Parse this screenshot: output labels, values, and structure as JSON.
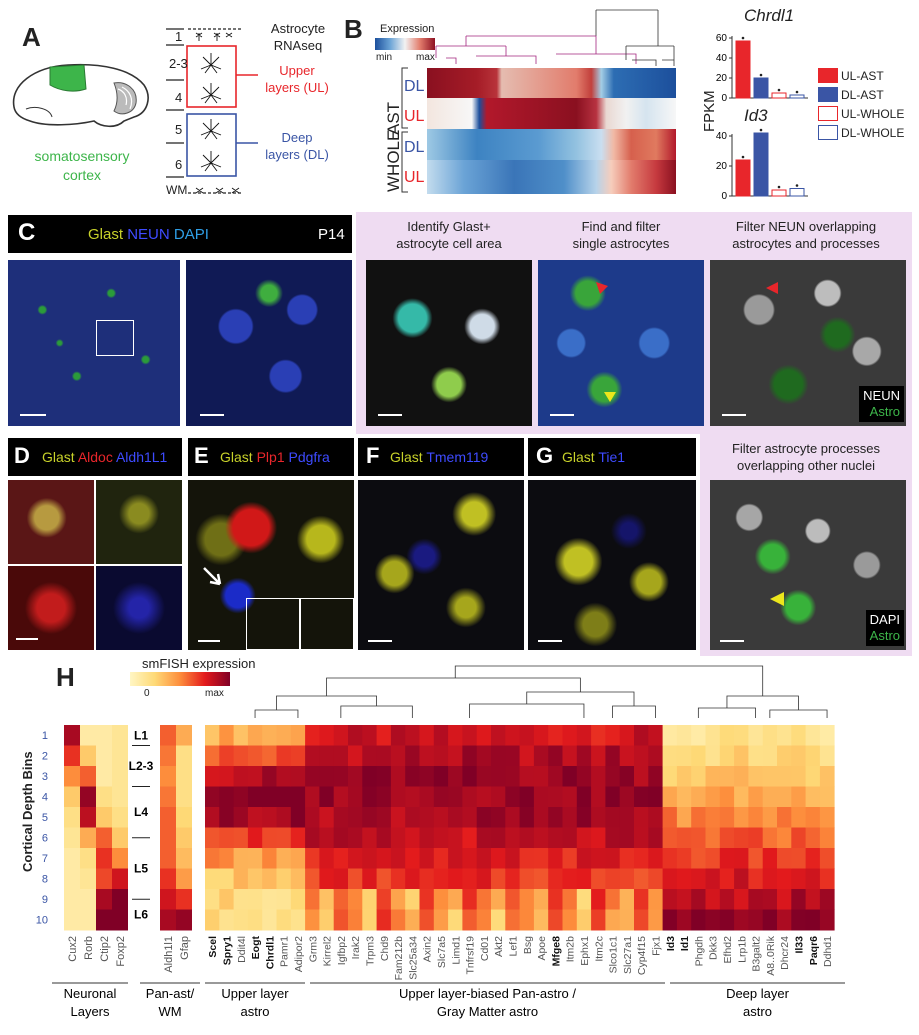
{
  "panelA": {
    "label": "A",
    "title_line1": "Astrocyte",
    "title_line2": "RNAseq",
    "region_line1": "somatosensory",
    "region_line2": "cortex",
    "layers": [
      "1",
      "2-3",
      "4",
      "5",
      "6",
      "WM"
    ],
    "upper_line1": "Upper",
    "upper_line2": "layers (UL)",
    "deep_line1": "Deep",
    "deep_line2": "layers (DL)"
  },
  "panelB": {
    "label": "B",
    "legend_title": "Expression",
    "legend_min": "min",
    "legend_max": "max",
    "group_ast": "AST",
    "group_whole": "WHOLE",
    "row_labels": [
      "DL",
      "UL",
      "DL",
      "UL"
    ],
    "yaxis": "FPKM",
    "legend_items": [
      "UL-AST",
      "DL-AST",
      "UL-WHOLE",
      "DL-WHOLE"
    ],
    "colors": {
      "ul": "#e8262b",
      "dl": "#3a55a5"
    }
  },
  "chart_data": [
    {
      "type": "bar",
      "title": "Chrdl1",
      "categories": [
        "UL-AST",
        "DL-AST",
        "UL-WHOLE",
        "DL-WHOLE"
      ],
      "values": [
        57,
        20,
        5,
        3
      ],
      "ylim": [
        0,
        60
      ],
      "yticks": [
        0,
        20,
        40,
        60
      ]
    },
    {
      "type": "bar",
      "title": "Id3",
      "categories": [
        "UL-AST",
        "DL-AST",
        "UL-WHOLE",
        "DL-WHOLE"
      ],
      "values": [
        24,
        42,
        4,
        5
      ],
      "ylim": [
        0,
        40
      ],
      "yticks": [
        0,
        20,
        40
      ]
    },
    {
      "type": "heatmap",
      "title": "smFISH expression",
      "legend_min": "0",
      "legend_max": "max",
      "ylabel": "Cortical Depth Bins",
      "rows": [
        "1",
        "2",
        "3",
        "4",
        "5",
        "6",
        "7",
        "8",
        "9",
        "10"
      ],
      "layer_labels": [
        "L1",
        "L2-3",
        "L4",
        "L5",
        "L6"
      ],
      "neuronal_genes": [
        "Cux2",
        "Rorb",
        "Ctip2",
        "Foxp2"
      ],
      "panast_genes": [
        "Aldh1l1",
        "Gfap"
      ],
      "genes": [
        "Scel",
        "Spry1",
        "Ddit4l",
        "Eogt",
        "Chrdl1",
        "Pamr1",
        "Adipor2",
        "Grm3",
        "Kirrel2",
        "Igfbp2",
        "Irak2",
        "Trpm3",
        "Chd9",
        "Fam212b",
        "Slc25a34",
        "Axin2",
        "Slc7a5",
        "Limd1",
        "Tnfrsf19",
        "Cd01",
        "Akt2",
        "Lef1",
        "Bsg",
        "Apoe",
        "Mfge8",
        "Itm2b",
        "Ephx1",
        "Itm2c",
        "Slco1c1",
        "Slc27a1",
        "Cyp4f15",
        "Fjx1",
        "Id3",
        "Id1",
        "Phgdh",
        "Dkk3",
        "Efhd2",
        "Lrp1b",
        "B3galt2",
        "A8..0Rik",
        "Dhcr24",
        "Il33",
        "Paqr6",
        "Ddhd1"
      ],
      "bold_genes": [
        "Scel",
        "Spry1",
        "Eogt",
        "Chrdl1",
        "Mfge8",
        "Id3",
        "Id1",
        "Il33",
        "Paqr6"
      ],
      "groups": [
        "Neuronal Layers",
        "Pan-ast/ WM",
        "Upper layer astro",
        "Upper layer-biased Pan-astro / Gray Matter astro",
        "Deep layer astro"
      ]
    }
  ],
  "panelC": {
    "label": "C",
    "stain_glast": "Glast",
    "stain_neun": "NEUN",
    "stain_dapi": "DAPI",
    "age": "P14",
    "step1_line1": "Identify Glast+",
    "step1_line2": "astrocyte cell area",
    "step2_line1": "Find and filter",
    "step2_line2": "single astrocytes",
    "step3_line1": "Filter NEUN overlapping",
    "step3_line2": "astrocytes and processes",
    "step3_tag1": "NEUN",
    "step3_tag2": "Astro",
    "step4_line1": "Filter astrocyte processes",
    "step4_line2": "overlapping other nuclei",
    "step4_tag1": "DAPI",
    "step4_tag2": "Astro"
  },
  "panelD": {
    "label": "D",
    "s1": "Glast",
    "s2": "Aldoc",
    "s3": "Aldh1L1"
  },
  "panelE": {
    "label": "E",
    "s1": "Glast",
    "s2": "Plp1",
    "s3": "Pdgfra"
  },
  "panelF": {
    "label": "F",
    "s1": "Glast",
    "s2": "Tmem119"
  },
  "panelG": {
    "label": "G",
    "s1": "Glast",
    "s2": "Tie1"
  },
  "panelH": {
    "label": "H"
  }
}
